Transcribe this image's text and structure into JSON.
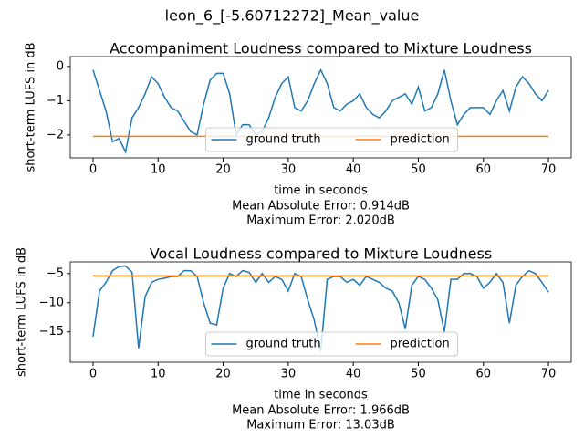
{
  "title": "leon_6_[-5.60712272]_Mean_value",
  "chart_data": [
    {
      "type": "line",
      "title": "Accompaniment Loudness compared to Mixture Loudness",
      "xlabel": "time in seconds",
      "ylabel": "short-term LUFS in dB",
      "annotations": [
        "Mean Absolute Error: 0.914dB",
        "Maximum Error: 2.020dB"
      ],
      "x": [
        0,
        1,
        2,
        3,
        4,
        5,
        6,
        7,
        8,
        9,
        10,
        11,
        12,
        13,
        14,
        15,
        16,
        17,
        18,
        19,
        20,
        21,
        22,
        23,
        24,
        25,
        26,
        27,
        28,
        29,
        30,
        31,
        32,
        33,
        34,
        35,
        36,
        37,
        38,
        39,
        40,
        41,
        42,
        43,
        44,
        45,
        46,
        47,
        48,
        49,
        50,
        51,
        52,
        53,
        54,
        55,
        56,
        57,
        58,
        59,
        60,
        61,
        62,
        63,
        64,
        65,
        66,
        67,
        68,
        69,
        70
      ],
      "series": [
        {
          "name": "ground truth",
          "color": "#1f77b4",
          "values": [
            -0.1,
            -0.7,
            -1.3,
            -2.2,
            -2.1,
            -2.5,
            -1.5,
            -1.2,
            -0.8,
            -0.3,
            -0.5,
            -0.9,
            -1.2,
            -1.3,
            -1.6,
            -1.9,
            -2.0,
            -1.1,
            -0.4,
            -0.2,
            -0.2,
            -0.8,
            -2.0,
            -1.7,
            -1.7,
            -2.0,
            -1.9,
            -1.5,
            -0.9,
            -0.5,
            -0.3,
            -1.2,
            -1.3,
            -1.0,
            -0.5,
            -0.1,
            -0.5,
            -1.2,
            -1.3,
            -1.1,
            -1.0,
            -0.8,
            -1.2,
            -1.4,
            -1.5,
            -1.3,
            -1.0,
            -0.9,
            -0.8,
            -1.1,
            -0.6,
            -1.3,
            -1.2,
            -0.8,
            -0.1,
            -1.0,
            -1.7,
            -1.4,
            -1.2,
            -1.2,
            -1.2,
            -1.4,
            -1.0,
            -0.7,
            -1.3,
            -0.6,
            -0.3,
            -0.5,
            -0.8,
            -1.0,
            -0.7
          ]
        },
        {
          "name": "prediction",
          "color": "#ff7f0e",
          "values": [
            -2.04,
            -2.04,
            -2.04,
            -2.04,
            -2.04,
            -2.04,
            -2.04,
            -2.04,
            -2.04,
            -2.04,
            -2.04,
            -2.04,
            -2.04,
            -2.04,
            -2.04,
            -2.04,
            -2.04,
            -2.04,
            -2.04,
            -2.04,
            -2.04,
            -2.04,
            -2.04,
            -2.04,
            -2.04,
            -2.04,
            -2.04,
            -2.04,
            -2.04,
            -2.04,
            -2.04,
            -2.04,
            -2.04,
            -2.04,
            -2.04,
            -2.04,
            -2.04,
            -2.04,
            -2.04,
            -2.04,
            -2.04,
            -2.04,
            -2.04,
            -2.04,
            -2.04,
            -2.04,
            -2.04,
            -2.04,
            -2.04,
            -2.04,
            -2.04,
            -2.04,
            -2.04,
            -2.04,
            -2.04,
            -2.04,
            -2.04,
            -2.04,
            -2.04,
            -2.04,
            -2.04,
            -2.04,
            -2.04,
            -2.04,
            -2.04,
            -2.04,
            -2.04,
            -2.04,
            -2.04,
            -2.04,
            -2.04
          ]
        }
      ],
      "xlim": [
        -3.5,
        73.5
      ],
      "xticks": [
        0,
        10,
        20,
        30,
        40,
        50,
        60,
        70
      ],
      "ylim": [
        -2.67,
        0.29
      ],
      "yticks": [
        {
          "value": -2,
          "label": "−2"
        },
        {
          "value": -1,
          "label": "−1"
        },
        0
      ],
      "legend": "lower center"
    },
    {
      "type": "line",
      "title": "Vocal Loudness compared to Mixture Loudness",
      "xlabel": "time in seconds",
      "ylabel": "short-term LUFS in dB",
      "annotations": [
        "Mean Absolute Error: 1.966dB",
        "Maximum Error: 13.03dB"
      ],
      "x": [
        0,
        1,
        2,
        3,
        4,
        5,
        6,
        7,
        8,
        9,
        10,
        11,
        12,
        13,
        14,
        15,
        16,
        17,
        18,
        19,
        20,
        21,
        22,
        23,
        24,
        25,
        26,
        27,
        28,
        29,
        30,
        31,
        32,
        33,
        34,
        35,
        36,
        37,
        38,
        39,
        40,
        41,
        42,
        43,
        44,
        45,
        46,
        47,
        48,
        49,
        50,
        51,
        52,
        53,
        54,
        55,
        56,
        57,
        58,
        59,
        60,
        61,
        62,
        63,
        64,
        65,
        66,
        67,
        68,
        69,
        70
      ],
      "series": [
        {
          "name": "ground truth",
          "color": "#1f77b4",
          "values": [
            -15.8,
            -8,
            -6.5,
            -4.5,
            -3.8,
            -3.7,
            -4.8,
            -17.8,
            -9,
            -6.5,
            -6,
            -5.8,
            -5.5,
            -5.5,
            -4.5,
            -4.5,
            -5.5,
            -10,
            -13.5,
            -13.8,
            -7.5,
            -5,
            -5.5,
            -4.5,
            -4.8,
            -6.5,
            -5,
            -6.5,
            -5.5,
            -6,
            -8,
            -5,
            -5.5,
            -9.5,
            -13,
            -18.3,
            -6,
            -5.5,
            -5.5,
            -6.5,
            -6,
            -7,
            -5.5,
            -6,
            -6.5,
            -7.5,
            -8,
            -10,
            -14.5,
            -7,
            -5.5,
            -6,
            -7.5,
            -9.5,
            -15,
            -6,
            -6,
            -5,
            -5,
            -5.5,
            -7.5,
            -6.5,
            -5,
            -6.5,
            -13.5,
            -7,
            -5.5,
            -4.5,
            -5,
            -6.5,
            -8.2
          ]
        },
        {
          "name": "prediction",
          "color": "#ff7f0e",
          "values": [
            -5.4,
            -5.4,
            -5.4,
            -5.4,
            -5.4,
            -5.4,
            -5.4,
            -5.4,
            -5.4,
            -5.4,
            -5.4,
            -5.4,
            -5.4,
            -5.4,
            -5.4,
            -5.4,
            -5.4,
            -5.4,
            -5.4,
            -5.4,
            -5.4,
            -5.4,
            -5.4,
            -5.4,
            -5.4,
            -5.4,
            -5.4,
            -5.4,
            -5.4,
            -5.4,
            -5.4,
            -5.4,
            -5.4,
            -5.4,
            -5.4,
            -5.4,
            -5.4,
            -5.4,
            -5.4,
            -5.4,
            -5.4,
            -5.4,
            -5.4,
            -5.4,
            -5.4,
            -5.4,
            -5.4,
            -5.4,
            -5.4,
            -5.4,
            -5.4,
            -5.4,
            -5.4,
            -5.4,
            -5.4,
            -5.4,
            -5.4,
            -5.4,
            -5.4,
            -5.4,
            -5.4,
            -5.4,
            -5.4,
            -5.4,
            -5.4,
            -5.4,
            -5.4,
            -5.4,
            -5.4,
            -5.4,
            -5.4
          ]
        }
      ],
      "xlim": [
        -3.5,
        73.5
      ],
      "xticks": [
        0,
        10,
        20,
        30,
        40,
        50,
        60,
        70
      ],
      "ylim": [
        -20.2,
        -3.0
      ],
      "yticks": [
        {
          "value": -15,
          "label": "−15"
        },
        {
          "value": -10,
          "label": "−10"
        },
        {
          "value": -5,
          "label": "−5"
        }
      ],
      "legend": "lower center"
    }
  ]
}
